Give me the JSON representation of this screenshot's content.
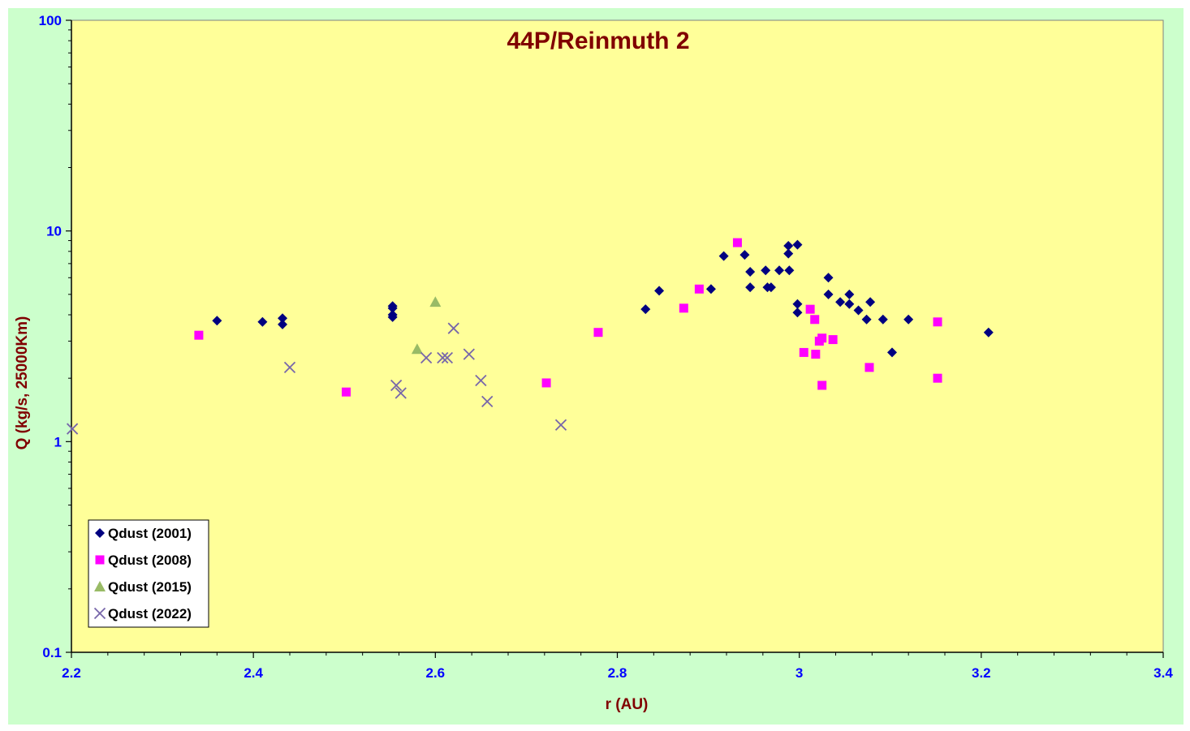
{
  "chart_data": {
    "type": "scatter",
    "title": "44P/Reinmuth 2",
    "xlabel": "r (AU)",
    "ylabel": "Q (kg/s, 25000Km)",
    "xlim": [
      2.2,
      3.4
    ],
    "ylim": [
      0.1,
      100
    ],
    "yscale": "log",
    "x_ticks": [
      "2.2",
      "2.4",
      "2.6",
      "2.8",
      "3",
      "3.2",
      "3.4"
    ],
    "y_ticks": [
      "0.1",
      "1",
      "10",
      "100"
    ],
    "legend_position": "bottom-left",
    "grid": false,
    "colors": {
      "outer_background": "#ccffcc",
      "plot_background": "#ffff99",
      "tick_text": "#0000ff",
      "title_text": "#800000"
    },
    "series": [
      {
        "name": "Qdust (2001)",
        "marker": "diamond",
        "color": "#000080",
        "x": [
          2.36,
          2.41,
          2.432,
          2.432,
          2.553,
          2.553,
          2.553,
          2.553,
          2.831,
          2.846,
          2.903,
          2.917,
          2.94,
          2.946,
          2.946,
          2.963,
          2.965,
          2.969,
          2.978,
          2.988,
          2.988,
          2.989,
          2.998,
          2.998,
          2.998,
          3.032,
          3.032,
          3.045,
          3.055,
          3.055,
          3.065,
          3.074,
          3.078,
          3.092,
          3.102,
          3.12,
          3.208
        ],
        "y": [
          3.75,
          3.7,
          3.6,
          3.85,
          4.0,
          4.4,
          3.9,
          4.3,
          4.25,
          5.2,
          5.3,
          7.6,
          7.7,
          6.4,
          5.4,
          6.5,
          5.4,
          5.4,
          6.5,
          8.5,
          7.8,
          6.5,
          8.6,
          4.5,
          4.1,
          6.0,
          5.0,
          4.6,
          5.0,
          4.5,
          4.2,
          3.8,
          4.6,
          3.8,
          2.65,
          3.8,
          3.3
        ]
      },
      {
        "name": "Qdust (2008)",
        "marker": "square",
        "color": "#ff00ff",
        "x": [
          2.34,
          2.502,
          2.722,
          2.779,
          2.873,
          2.89,
          2.932,
          3.005,
          3.012,
          3.017,
          3.018,
          3.022,
          3.025,
          3.025,
          3.037,
          3.077,
          3.152,
          3.152
        ],
        "y": [
          3.2,
          1.72,
          1.9,
          3.3,
          4.3,
          5.3,
          8.8,
          2.65,
          4.25,
          3.8,
          2.6,
          3.0,
          3.1,
          1.85,
          3.05,
          2.25,
          3.7,
          2.0
        ]
      },
      {
        "name": "Qdust (2015)",
        "marker": "triangle",
        "color": "#99bb66",
        "x": [
          2.58,
          2.6
        ],
        "y": [
          2.75,
          4.6
        ]
      },
      {
        "name": "Qdust (2022)",
        "marker": "cross",
        "color": "#7766aa",
        "x": [
          2.201,
          2.44,
          2.557,
          2.562,
          2.59,
          2.608,
          2.613,
          2.62,
          2.637,
          2.65,
          2.657,
          2.738
        ],
        "y": [
          1.15,
          2.25,
          1.85,
          1.7,
          2.5,
          2.5,
          2.5,
          3.45,
          2.6,
          1.95,
          1.55,
          1.2
        ]
      }
    ]
  }
}
